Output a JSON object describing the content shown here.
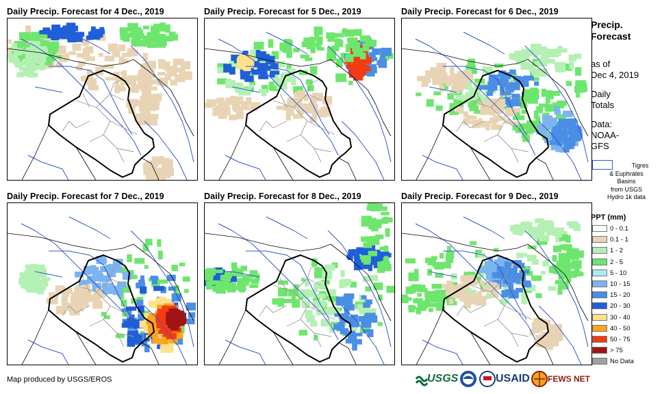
{
  "panels": [
    {
      "title": "Daily Precip. Forecast for 4 Dec., 2019"
    },
    {
      "title": "Daily Precip. Forecast for 5 Dec., 2019"
    },
    {
      "title": "Daily Precip. Forecast for 6 Dec., 2019"
    },
    {
      "title": "Daily Precip. Forecast for 7 Dec., 2019"
    },
    {
      "title": "Daily Precip. Forecast for 8 Dec., 2019"
    },
    {
      "title": "Daily Precip. Forecast for 9 Dec., 2019"
    }
  ],
  "legend": {
    "heading_line1": "Precip.",
    "heading_line2": "Forecast",
    "asof_line1": "as of",
    "asof_line2": "Dec 4, 2019",
    "totals_line1": "Daily",
    "totals_line2": "Totals",
    "data_line1": "Data:",
    "data_line2": "NOAA-",
    "data_line3": "GFS",
    "basin_line1": "Tigres",
    "basin_line2": "& Euphrates",
    "basin_line3": "Basins",
    "basin_line4": "from USGS",
    "basin_line5": "Hydro 1k data",
    "ppt_title": "PPT (mm)",
    "classes": [
      {
        "label": "0 - 0.1",
        "color": "#ffffff"
      },
      {
        "label": "0.1 - 1",
        "color": "#e8d4b4"
      },
      {
        "label": "1 - 2",
        "color": "#b4f0b4"
      },
      {
        "label": "2 - 5",
        "color": "#6ee66e"
      },
      {
        "label": "5 - 10",
        "color": "#a8ecf4"
      },
      {
        "label": "10 - 15",
        "color": "#7cb4f0"
      },
      {
        "label": "15 - 20",
        "color": "#4a8ee6"
      },
      {
        "label": "20 - 30",
        "color": "#1f5fd8"
      },
      {
        "label": "30 - 40",
        "color": "#fde28a"
      },
      {
        "label": "40 - 50",
        "color": "#fba41e"
      },
      {
        "label": "50 - 75",
        "color": "#f23c10"
      },
      {
        "label": "> 75",
        "color": "#a01414"
      },
      {
        "label": "No Data",
        "color": "#a0a0a0"
      }
    ]
  },
  "footer": {
    "credit": "Map produced by USGS/EROS",
    "logo_usgs": "USGS",
    "logo_usaid": "USAID",
    "logo_fews": "FEWS NET"
  },
  "colors": {
    "border": "#000000",
    "province": "#9a9a9a",
    "basin": "#3355cc"
  }
}
